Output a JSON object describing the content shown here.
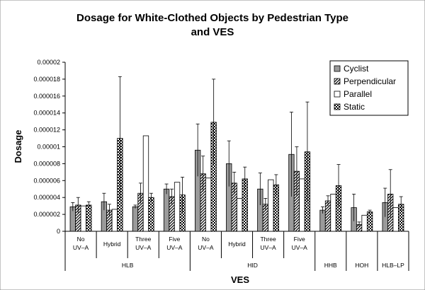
{
  "chart_data": {
    "type": "bar",
    "title_line1": "Dosage for White-Clothed Objects by Pedestrian Type",
    "title_line2": "and VES",
    "xlabel": "VES",
    "ylabel": "Dosage",
    "ylim": [
      0,
      2e-05
    ],
    "yticks": [
      "0",
      "0.000002",
      "0.000004",
      "0.000006",
      "0.000008",
      "0.00001",
      "0.000012",
      "0.000014",
      "0.000016",
      "0.000018",
      "0.00002"
    ],
    "categories": [
      {
        "lines": [
          "No",
          "UV–A"
        ]
      },
      {
        "lines": [
          "Hybrid"
        ]
      },
      {
        "lines": [
          "Three",
          "UV–A"
        ]
      },
      {
        "lines": [
          "Five",
          "UV–A"
        ]
      },
      {
        "lines": [
          "No",
          "UV–A"
        ]
      },
      {
        "lines": [
          "Hybrid"
        ]
      },
      {
        "lines": [
          "Three",
          "UV–A"
        ]
      },
      {
        "lines": [
          "Five",
          "UV–A"
        ]
      },
      {
        "lines": []
      },
      {
        "lines": []
      },
      {
        "lines": []
      }
    ],
    "groups": [
      {
        "label": "HLB",
        "from": 0,
        "to": 3
      },
      {
        "label": "HID",
        "from": 4,
        "to": 7
      },
      {
        "label": "HHB",
        "from": 8,
        "to": 8
      },
      {
        "label": "HOH",
        "from": 9,
        "to": 9
      },
      {
        "label": "HLB–LP",
        "from": 10,
        "to": 10
      }
    ],
    "legend_position": "top-right",
    "grid": false,
    "series": [
      {
        "name": "Cyclist",
        "pattern": "solid-gray",
        "values": [
          2.9e-06,
          3.5e-06,
          2.9e-06,
          5e-06,
          9.6e-06,
          8e-06,
          5e-06,
          9.1e-06,
          2.5e-06,
          2.8e-06,
          3.4e-06
        ],
        "err": [
          5e-07,
          1e-06,
          2e-07,
          6e-07,
          3.1e-06,
          2.7e-06,
          1.9e-06,
          5e-06,
          4e-07,
          1.6e-06,
          1.7e-06
        ]
      },
      {
        "name": "Perpendicular",
        "pattern": "diagonal",
        "values": [
          3.1e-06,
          2.5e-06,
          4.5e-06,
          4.1e-06,
          6.8e-06,
          5.7e-06,
          3.2e-06,
          7.1e-06,
          3.6e-06,
          8e-07,
          4.4e-06
        ],
        "err": [
          9e-07,
          7e-07,
          1.2e-06,
          9e-07,
          2.1e-06,
          1.3e-06,
          7e-07,
          2.9e-06,
          6e-07,
          3e-07,
          2.9e-06
        ]
      },
      {
        "name": "Parallel",
        "pattern": "white",
        "values": [
          3e-06,
          2.6e-06,
          1.13e-05,
          5.8e-06,
          6.3e-06,
          3.9e-06,
          6.1e-06,
          6.2e-06,
          4.4e-06,
          1.9e-06,
          2.8e-06
        ]
      },
      {
        "name": "Static",
        "pattern": "checker",
        "values": [
          3.1e-06,
          1.1e-05,
          4e-06,
          4.3e-06,
          1.29e-05,
          6.2e-06,
          5.5e-06,
          9.4e-06,
          5.4e-06,
          2.3e-06,
          3.2e-06
        ],
        "err": [
          4e-07,
          7.3e-06,
          5e-07,
          2.1e-06,
          5.1e-06,
          1.4e-06,
          1.2e-06,
          5.9e-06,
          2.5e-06,
          2e-07,
          9e-07
        ]
      }
    ]
  }
}
